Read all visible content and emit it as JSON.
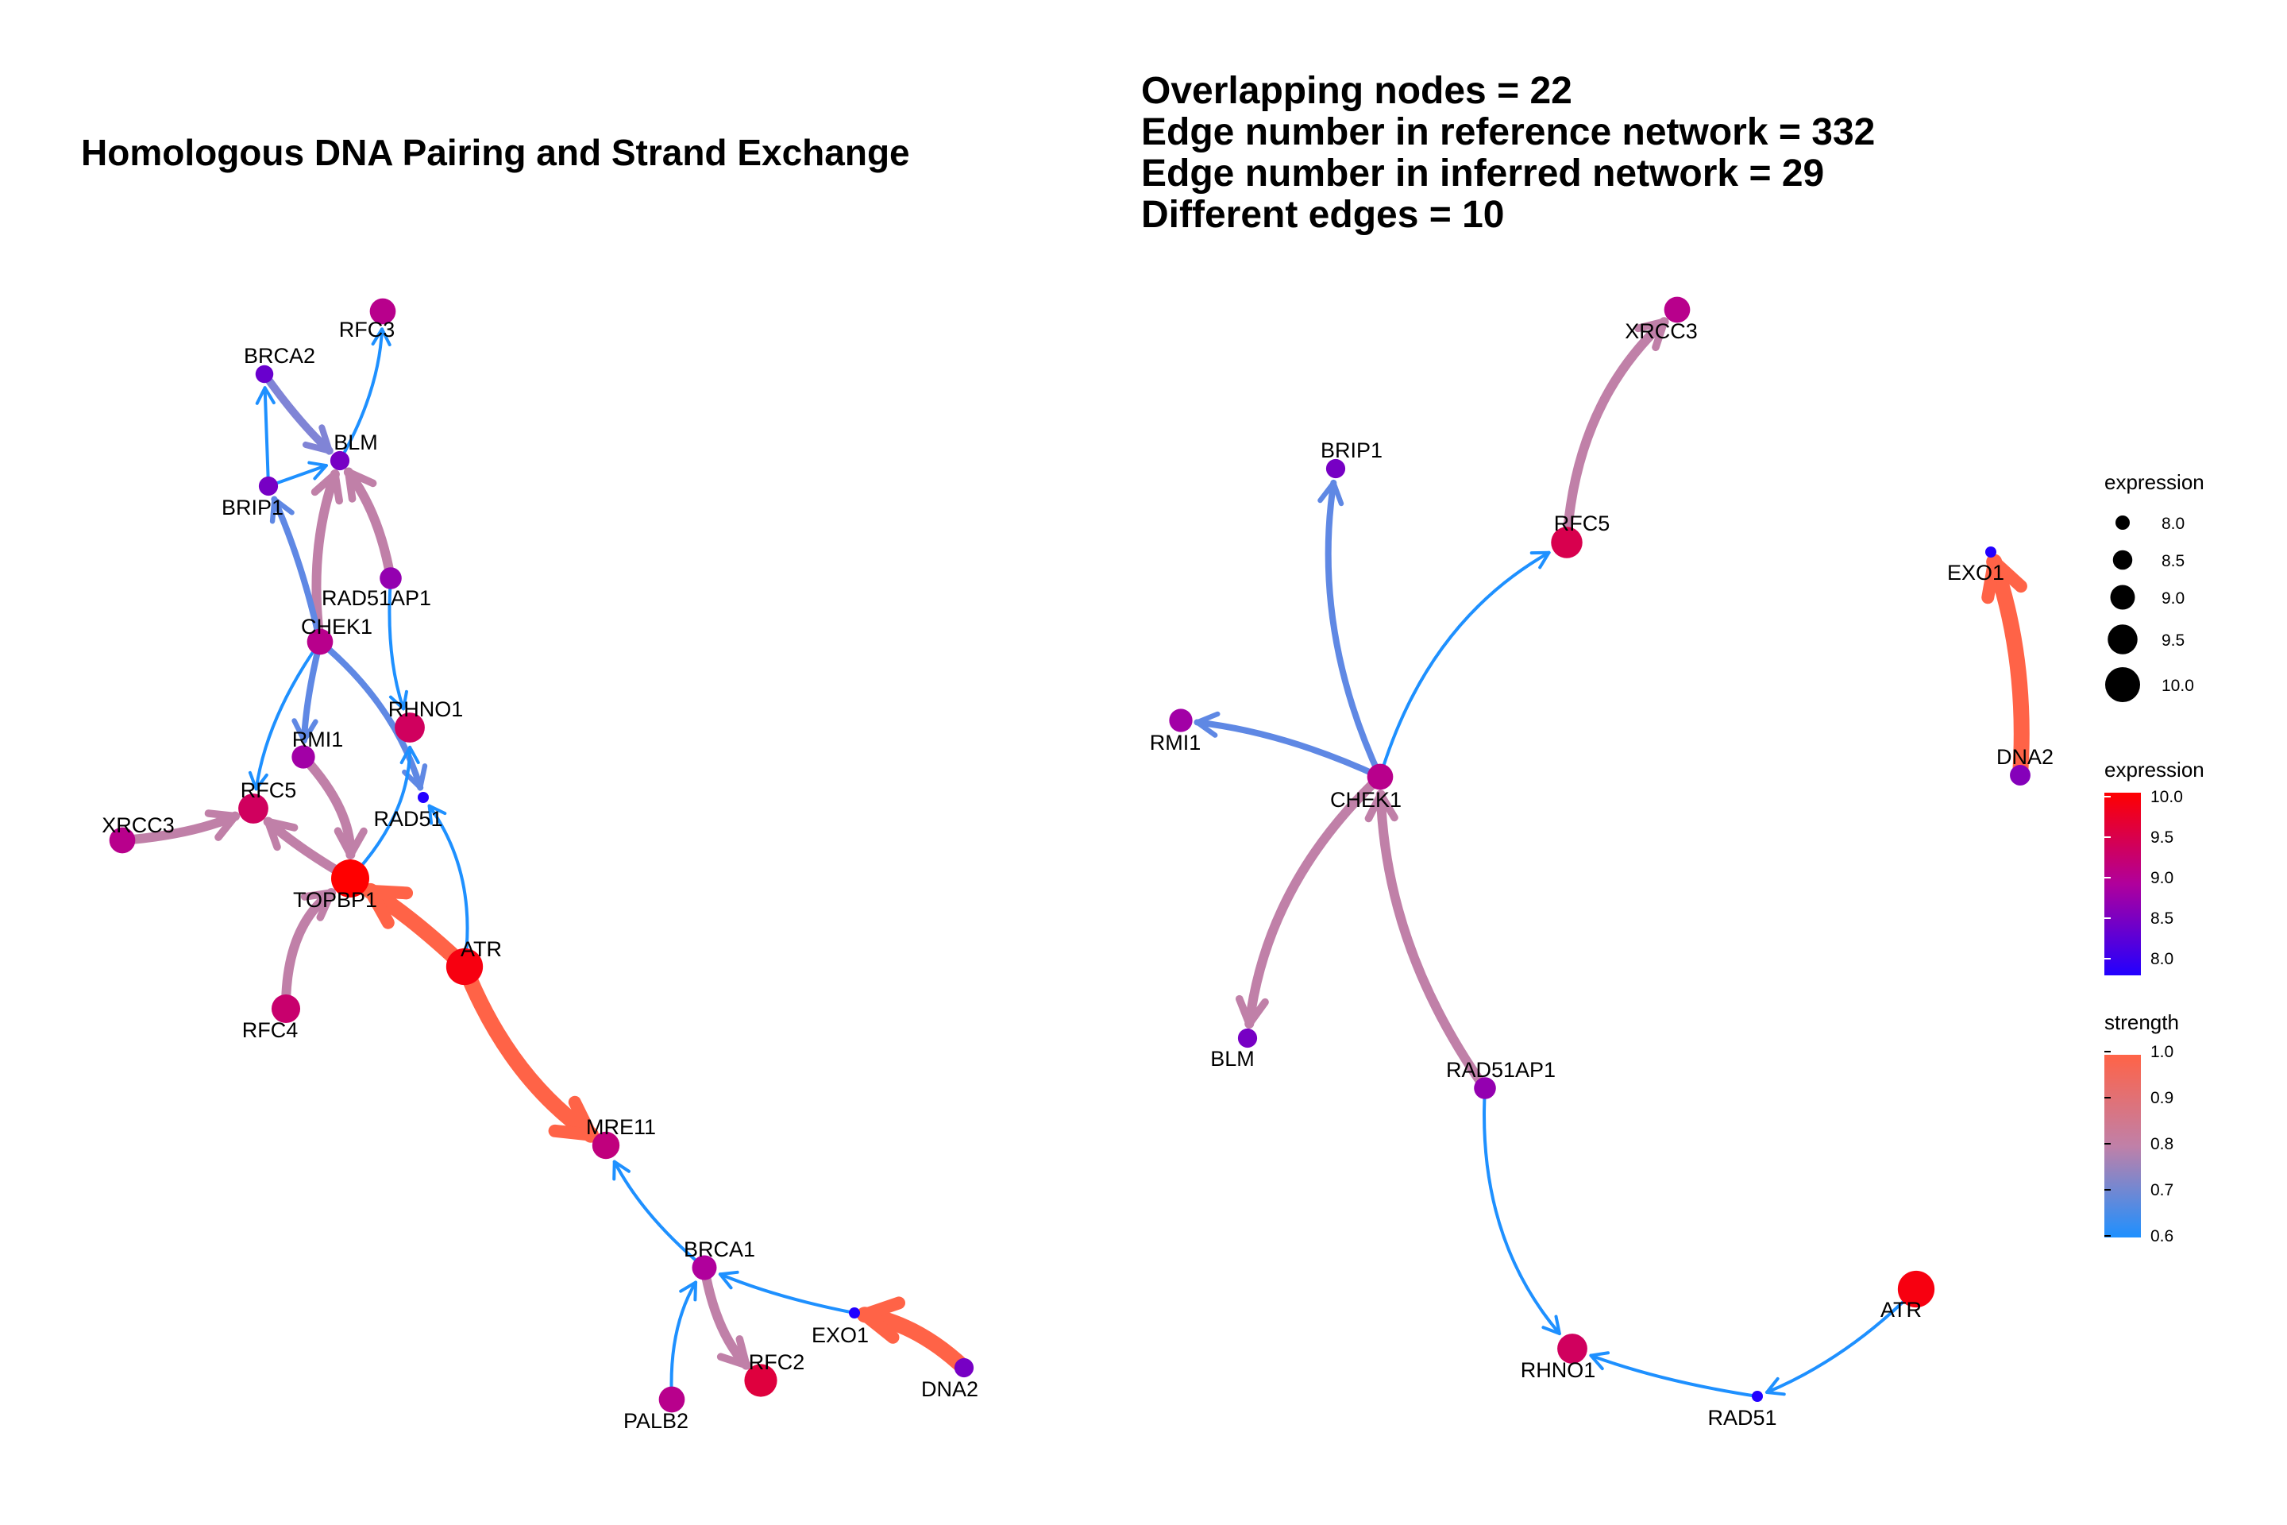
{
  "left_panel": {
    "title": "Homologous DNA Pairing and Strand Exchange",
    "nodes": [
      {
        "id": "RFC3",
        "expression": 9.1
      },
      {
        "id": "BRCA2",
        "expression": 8.5
      },
      {
        "id": "BLM",
        "expression": 8.6
      },
      {
        "id": "BRIP1",
        "expression": 8.6
      },
      {
        "id": "RAD51AP1",
        "expression": 8.8
      },
      {
        "id": "CHEK1",
        "expression": 9.1
      },
      {
        "id": "RHNO1",
        "expression": 9.4
      },
      {
        "id": "RMI1",
        "expression": 8.9
      },
      {
        "id": "RFC5",
        "expression": 9.4
      },
      {
        "id": "RAD51",
        "expression": 8.0
      },
      {
        "id": "XRCC3",
        "expression": 9.1
      },
      {
        "id": "TOPBP1",
        "expression": 10.0
      },
      {
        "id": "ATR",
        "expression": 9.9
      },
      {
        "id": "RFC4",
        "expression": 9.3
      },
      {
        "id": "MRE11",
        "expression": 9.2
      },
      {
        "id": "BRCA1",
        "expression": 9.0
      },
      {
        "id": "EXO1",
        "expression": 8.0
      },
      {
        "id": "RFC2",
        "expression": 9.6
      },
      {
        "id": "PALB2",
        "expression": 9.1
      },
      {
        "id": "DNA2",
        "expression": 8.6
      }
    ],
    "edges": [
      {
        "from": "BLM",
        "to": "RFC3",
        "strength": 0.6
      },
      {
        "from": "BRCA2",
        "to": "BLM",
        "strength": 0.75
      },
      {
        "from": "BRIP1",
        "to": "BRCA2",
        "strength": 0.6
      },
      {
        "from": "BRIP1",
        "to": "BLM",
        "strength": 0.6
      },
      {
        "from": "CHEK1",
        "to": "BLM",
        "strength": 0.8
      },
      {
        "from": "RAD51AP1",
        "to": "BLM",
        "strength": 0.8
      },
      {
        "from": "CHEK1",
        "to": "BRIP1",
        "strength": 0.7
      },
      {
        "from": "RAD51AP1",
        "to": "RHNO1",
        "strength": 0.6
      },
      {
        "from": "CHEK1",
        "to": "RMI1",
        "strength": 0.7
      },
      {
        "from": "CHEK1",
        "to": "RFC5",
        "strength": 0.6
      },
      {
        "from": "CHEK1",
        "to": "RAD51",
        "strength": 0.7
      },
      {
        "from": "RMI1",
        "to": "TOPBP1",
        "strength": 0.8
      },
      {
        "from": "XRCC3",
        "to": "RFC5",
        "strength": 0.8
      },
      {
        "from": "TOPBP1",
        "to": "RFC5",
        "strength": 0.8
      },
      {
        "from": "TOPBP1",
        "to": "RHNO1",
        "strength": 0.6
      },
      {
        "from": "ATR",
        "to": "RAD51",
        "strength": 0.6
      },
      {
        "from": "ATR",
        "to": "TOPBP1",
        "strength": 1.0
      },
      {
        "from": "RFC4",
        "to": "TOPBP1",
        "strength": 0.8
      },
      {
        "from": "ATR",
        "to": "MRE11",
        "strength": 1.0
      },
      {
        "from": "BRCA1",
        "to": "MRE11",
        "strength": 0.6
      },
      {
        "from": "BRCA1",
        "to": "RFC2",
        "strength": 0.8
      },
      {
        "from": "PALB2",
        "to": "BRCA1",
        "strength": 0.6
      },
      {
        "from": "EXO1",
        "to": "BRCA1",
        "strength": 0.6
      },
      {
        "from": "DNA2",
        "to": "EXO1",
        "strength": 1.0
      }
    ]
  },
  "right_panel": {
    "stats": [
      "Overlapping nodes = 22",
      "Edge number in reference network = 332",
      "Edge number in inferred network = 29",
      "Different edges = 10"
    ],
    "nodes": [
      {
        "id": "XRCC3",
        "expression": 9.1
      },
      {
        "id": "BRIP1",
        "expression": 8.6
      },
      {
        "id": "RFC5",
        "expression": 9.5
      },
      {
        "id": "EXO1",
        "expression": 8.0
      },
      {
        "id": "RMI1",
        "expression": 8.9
      },
      {
        "id": "CHEK1",
        "expression": 9.1
      },
      {
        "id": "DNA2",
        "expression": 8.7
      },
      {
        "id": "BLM",
        "expression": 8.6
      },
      {
        "id": "RAD51AP1",
        "expression": 8.8
      },
      {
        "id": "ATR",
        "expression": 9.9
      },
      {
        "id": "RHNO1",
        "expression": 9.4
      },
      {
        "id": "RAD51",
        "expression": 8.0
      }
    ],
    "edges": [
      {
        "from": "RFC5",
        "to": "XRCC3",
        "strength": 0.8
      },
      {
        "from": "CHEK1",
        "to": "BRIP1",
        "strength": 0.7
      },
      {
        "from": "CHEK1",
        "to": "RFC5",
        "strength": 0.6
      },
      {
        "from": "CHEK1",
        "to": "RMI1",
        "strength": 0.7
      },
      {
        "from": "CHEK1",
        "to": "BLM",
        "strength": 0.8
      },
      {
        "from": "RAD51AP1",
        "to": "CHEK1",
        "strength": 0.8
      },
      {
        "from": "RAD51AP1",
        "to": "RHNO1",
        "strength": 0.6
      },
      {
        "from": "RAD51",
        "to": "RHNO1",
        "strength": 0.6
      },
      {
        "from": "ATR",
        "to": "RAD51",
        "strength": 0.6
      },
      {
        "from": "DNA2",
        "to": "EXO1",
        "strength": 1.0
      }
    ]
  },
  "legend": {
    "size": {
      "title": "expression",
      "labels": [
        "8.0",
        "8.5",
        "9.0",
        "9.5",
        "10.0"
      ]
    },
    "color": {
      "title": "expression",
      "labels": [
        "10.0",
        "9.5",
        "9.0",
        "8.5",
        "8.0"
      ]
    },
    "strength": {
      "title": "strength",
      "labels": [
        "1.0",
        "0.9",
        "0.8",
        "0.7",
        "0.6"
      ]
    }
  },
  "colors": {
    "expression_low": "#2200ff",
    "expression_high": "#ff0000",
    "strength_low": "#1e90ff",
    "strength_mid": "#c080a8",
    "strength_high": "#ff6347"
  }
}
